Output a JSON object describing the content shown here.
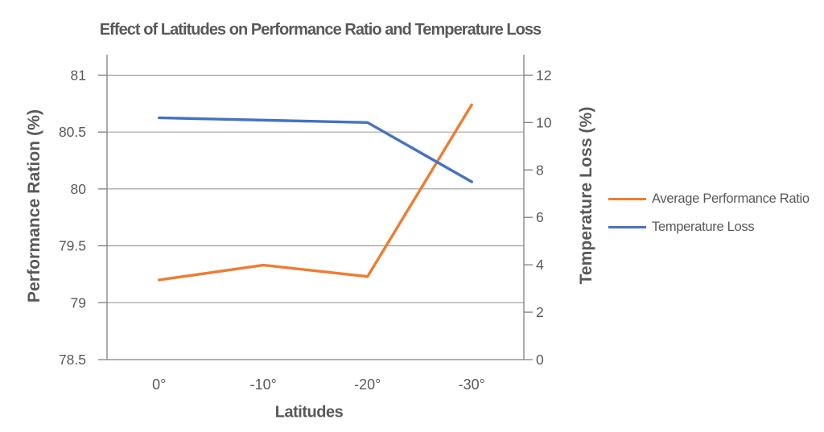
{
  "chart_data": {
    "type": "line",
    "title": "Effect of Latitudes on Performance Ratio and Temperature Loss",
    "xlabel": "Latitudes",
    "ylabel_left": "Performance Ration (%)",
    "ylabel_right": "Temperature Loss (%)",
    "categories": [
      "0°",
      "-10°",
      "-20°",
      "-30°"
    ],
    "series": [
      {
        "name": "Average Performance Ratio",
        "axis": "left",
        "color": "#ED7D31",
        "values": [
          79.2,
          79.33,
          79.23,
          80.74
        ]
      },
      {
        "name": "Temperature Loss",
        "axis": "right",
        "color": "#4472C4",
        "values": [
          10.2,
          10.1,
          10.0,
          7.5
        ]
      }
    ],
    "left_axis_ticks": [
      78.5,
      79,
      79.5,
      80,
      80.5,
      81
    ],
    "right_axis_ticks": [
      0,
      2,
      4,
      6,
      8,
      10,
      12
    ],
    "ylim_left": [
      78.5,
      81
    ],
    "ylim_right": [
      0,
      12
    ],
    "grid": "horizontal",
    "legend_position": "right",
    "colors": {
      "text": "#595959",
      "axis_line": "#7F7F7F",
      "grid_line": "#9B9B9B",
      "background": "#FFFFFF"
    }
  }
}
